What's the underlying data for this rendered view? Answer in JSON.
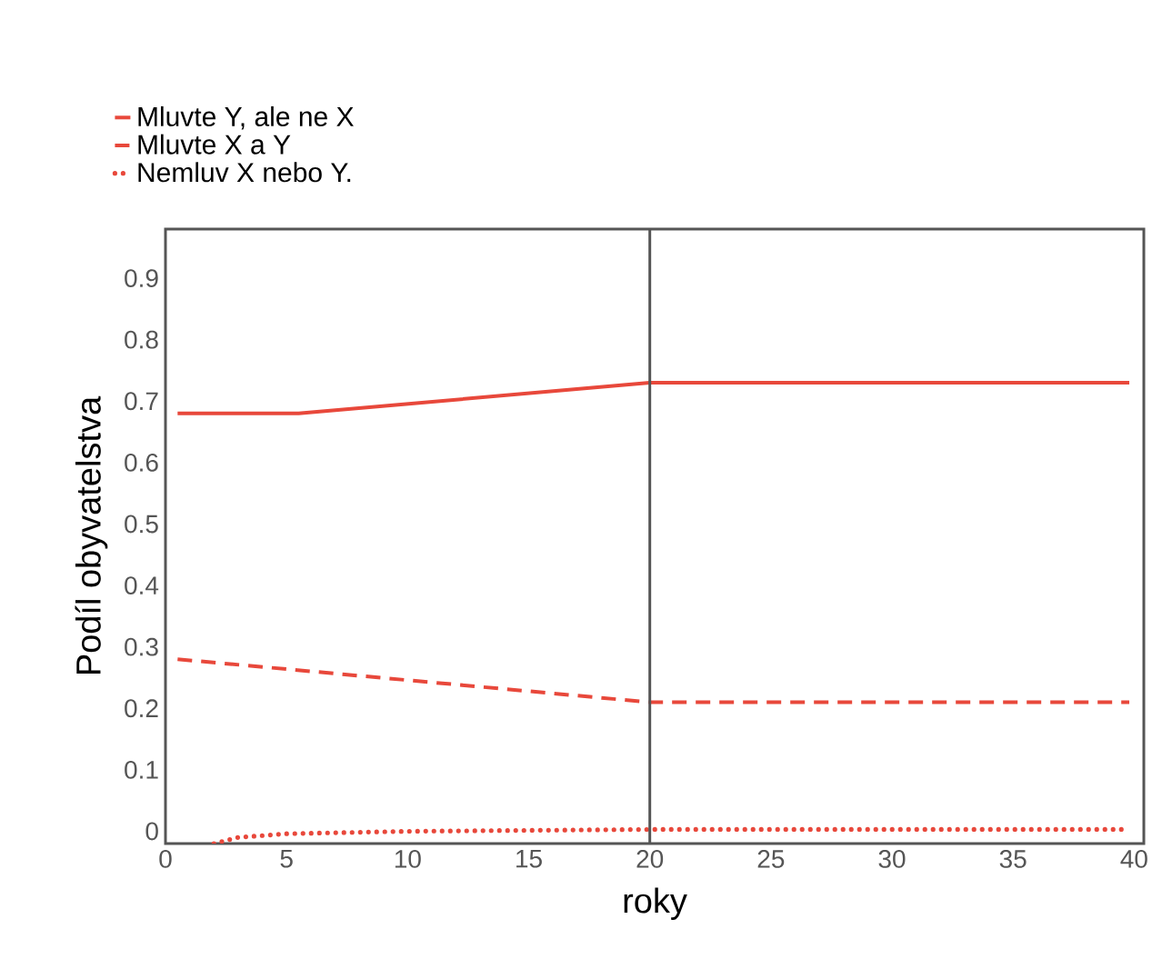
{
  "chart_data": {
    "type": "line",
    "xlabel": "roky",
    "ylabel": "Podíl obyvatelstva",
    "xlim": [
      0,
      40.4
    ],
    "ylim": [
      -0.02,
      0.98
    ],
    "xticks": [
      0,
      5,
      10,
      15,
      20,
      25,
      30,
      35,
      40
    ],
    "yticks": [
      0,
      0.1,
      0.2,
      0.3,
      0.4,
      0.5,
      0.6,
      0.7,
      0.8,
      0.9
    ],
    "grid": false,
    "legend": "top left",
    "marker": "none",
    "series": [
      {
        "name": "Mluvte Y, ale ne X",
        "color": "#e8483b",
        "line_style": "solid",
        "x": [
          0.5,
          5.5,
          20,
          39.8
        ],
        "values": [
          0.68,
          0.68,
          0.73,
          0.73
        ]
      },
      {
        "name": "Mluvte X a Y",
        "color": "#e8483b",
        "line_style": "dashed",
        "x": [
          0.5,
          20,
          39.8
        ],
        "values": [
          0.28,
          0.21,
          0.21
        ]
      },
      {
        "name": "Nemluv X nebo Y.",
        "color": "#e8483b",
        "line_style": "dotted",
        "x": [
          2,
          3,
          5,
          10,
          20,
          39.5
        ],
        "values": [
          -0.02,
          -0.01,
          -0.004,
          0,
          0.003,
          0.003
        ]
      }
    ],
    "ref_lines": [
      {
        "axis": "x",
        "value": 20,
        "color": "#555555"
      }
    ]
  }
}
